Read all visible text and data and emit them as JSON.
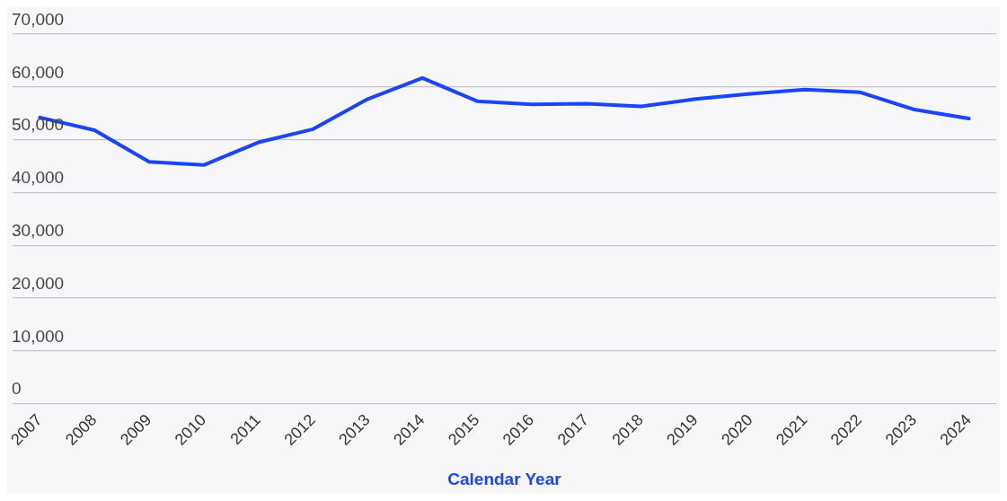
{
  "chart_data": {
    "type": "line",
    "xlabel": "Calendar Year",
    "categories": [
      "2007",
      "2008",
      "2009",
      "2010",
      "2011",
      "2012",
      "2013",
      "2014",
      "2015",
      "2016",
      "2017",
      "2018",
      "2019",
      "2020",
      "2021",
      "2022",
      "2023",
      "2024"
    ],
    "series": [
      {
        "color": "#1a44ff",
        "values": [
          54200,
          51800,
          45800,
          45200,
          49500,
          52000,
          57700,
          61700,
          57300,
          56700,
          56800,
          56300,
          57700,
          58700,
          59500,
          59000,
          55700,
          54000
        ]
      }
    ],
    "ylim": [
      0,
      70000
    ],
    "yticks": [
      {
        "value": 0,
        "label": "0"
      },
      {
        "value": 10000,
        "label": "10,000"
      },
      {
        "value": 20000,
        "label": "20,000"
      },
      {
        "value": 30000,
        "label": "30,000"
      },
      {
        "value": 40000,
        "label": "40,000"
      },
      {
        "value": 50000,
        "label": "50,000"
      },
      {
        "value": 60000,
        "label": "60,000"
      },
      {
        "value": 70000,
        "label": "70,000"
      }
    ],
    "grid": "y",
    "legend": false,
    "marker": "none",
    "line_style": "solid"
  }
}
